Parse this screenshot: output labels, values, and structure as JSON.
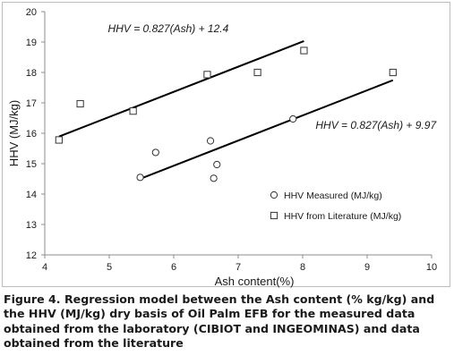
{
  "chart_data": {
    "type": "scatter",
    "xlabel": "Ash content(%)",
    "ylabel": "HHV (MJ/kg)",
    "xlim": [
      4,
      10
    ],
    "ylim": [
      12,
      20
    ],
    "x_ticks": [
      "4",
      "5",
      "6",
      "7",
      "8",
      "9",
      "10"
    ],
    "y_ticks": [
      "12",
      "13",
      "14",
      "15",
      "16",
      "17",
      "18",
      "19",
      "20"
    ],
    "grid": false,
    "legend_position": "bottom-right",
    "series": [
      {
        "name": "HHV Measured (MJ/kg)",
        "marker": "circle",
        "points": [
          {
            "x": 5.48,
            "y": 14.55
          },
          {
            "x": 5.72,
            "y": 15.37
          },
          {
            "x": 6.57,
            "y": 15.75
          },
          {
            "x": 6.62,
            "y": 14.52
          },
          {
            "x": 6.67,
            "y": 14.97
          },
          {
            "x": 7.85,
            "y": 16.47
          }
        ]
      },
      {
        "name": "HHV from Literature (MJ/kg)",
        "marker": "square",
        "points": [
          {
            "x": 4.22,
            "y": 15.78
          },
          {
            "x": 4.55,
            "y": 16.97
          },
          {
            "x": 5.37,
            "y": 16.73
          },
          {
            "x": 6.52,
            "y": 17.93
          },
          {
            "x": 7.3,
            "y": 18.0
          },
          {
            "x": 8.02,
            "y": 18.72
          },
          {
            "x": 9.4,
            "y": 18.0
          }
        ]
      }
    ],
    "regression_lines": [
      {
        "equation": "HHV = 0.827(Ash) + 12.4",
        "slope": 0.827,
        "intercept": 12.4,
        "x_range": [
          4.22,
          8.02
        ]
      },
      {
        "equation": "HHV = 0.827(Ash) + 9.97",
        "slope": 0.827,
        "intercept": 9.97,
        "x_range": [
          5.48,
          9.4
        ]
      }
    ],
    "colors": {
      "axis": "#8c8c8c",
      "marker_stroke": "#333333",
      "line": "#000000",
      "text": "#1a1a1a"
    }
  },
  "caption": {
    "text": "Figure 4. Regression model between the Ash content (% kg/kg) and the HHV (MJ/kg) dry basis of Oil Palm EFB for the measured data obtained from the laboratory (CIBIOT and INGEOMINAS) and data obtained from the literature"
  }
}
